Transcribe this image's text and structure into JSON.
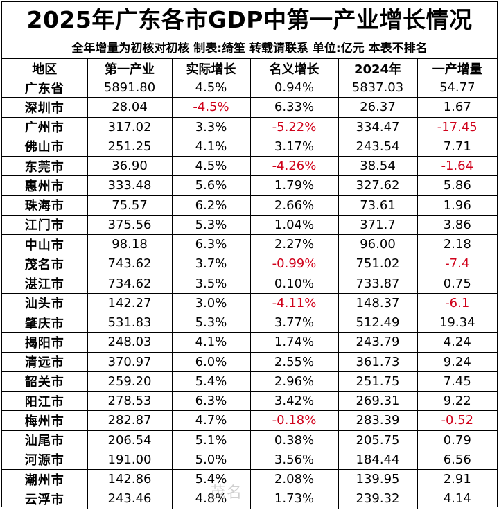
{
  "title": "2025年广东各市GDP中第一产业增长情况",
  "subtitle": "全年增量为初核对初核   制表:绮笙   转载请联系   单位:亿元   本表不排名",
  "table": {
    "headers": [
      "地区",
      "第一产业",
      "实际增长",
      "名义增长",
      "2024年",
      "一产增量"
    ],
    "rows": [
      {
        "region": "广东省",
        "primary": "5891.80",
        "real_growth": "4.5%",
        "nominal_growth": "0.94%",
        "y2024": "5837.03",
        "increment": "54.77"
      },
      {
        "region": "深圳市",
        "primary": "28.04",
        "real_growth": "-4.5%",
        "nominal_growth": "6.33%",
        "y2024": "26.37",
        "increment": "1.67"
      },
      {
        "region": "广州市",
        "primary": "317.02",
        "real_growth": "3.3%",
        "nominal_growth": "-5.22%",
        "y2024": "334.47",
        "increment": "-17.45"
      },
      {
        "region": "佛山市",
        "primary": "251.25",
        "real_growth": "4.1%",
        "nominal_growth": "3.17%",
        "y2024": "243.54",
        "increment": "7.71"
      },
      {
        "region": "东莞市",
        "primary": "36.90",
        "real_growth": "4.5%",
        "nominal_growth": "-4.26%",
        "y2024": "38.54",
        "increment": "-1.64"
      },
      {
        "region": "惠州市",
        "primary": "333.48",
        "real_growth": "5.6%",
        "nominal_growth": "1.79%",
        "y2024": "327.62",
        "increment": "5.86"
      },
      {
        "region": "珠海市",
        "primary": "75.57",
        "real_growth": "6.2%",
        "nominal_growth": "2.66%",
        "y2024": "73.61",
        "increment": "1.96"
      },
      {
        "region": "江门市",
        "primary": "375.56",
        "real_growth": "5.3%",
        "nominal_growth": "1.04%",
        "y2024": "371.7",
        "increment": "3.86"
      },
      {
        "region": "中山市",
        "primary": "98.18",
        "real_growth": "6.3%",
        "nominal_growth": "2.27%",
        "y2024": "96.00",
        "increment": "2.18"
      },
      {
        "region": "茂名市",
        "primary": "743.62",
        "real_growth": "3.7%",
        "nominal_growth": "-0.99%",
        "y2024": "751.02",
        "increment": "-7.4"
      },
      {
        "region": "湛江市",
        "primary": "734.62",
        "real_growth": "3.5%",
        "nominal_growth": "0.10%",
        "y2024": "733.87",
        "increment": "0.75"
      },
      {
        "region": "汕头市",
        "primary": "142.27",
        "real_growth": "3.0%",
        "nominal_growth": "-4.11%",
        "y2024": "148.37",
        "increment": "-6.1"
      },
      {
        "region": "肇庆市",
        "primary": "531.83",
        "real_growth": "5.3%",
        "nominal_growth": "3.77%",
        "y2024": "512.49",
        "increment": "19.34"
      },
      {
        "region": "揭阳市",
        "primary": "248.03",
        "real_growth": "4.1%",
        "nominal_growth": "1.74%",
        "y2024": "243.79",
        "increment": "4.24"
      },
      {
        "region": "清远市",
        "primary": "370.97",
        "real_growth": "6.0%",
        "nominal_growth": "2.55%",
        "y2024": "361.73",
        "increment": "9.24"
      },
      {
        "region": "韶关市",
        "primary": "259.20",
        "real_growth": "5.4%",
        "nominal_growth": "2.96%",
        "y2024": "251.75",
        "increment": "7.45"
      },
      {
        "region": "阳江市",
        "primary": "278.53",
        "real_growth": "6.3%",
        "nominal_growth": "3.42%",
        "y2024": "269.31",
        "increment": "9.22"
      },
      {
        "region": "梅州市",
        "primary": "282.87",
        "real_growth": "4.7%",
        "nominal_growth": "-0.18%",
        "y2024": "283.39",
        "increment": "-0.52"
      },
      {
        "region": "汕尾市",
        "primary": "206.54",
        "real_growth": "5.1%",
        "nominal_growth": "0.38%",
        "y2024": "205.75",
        "increment": "0.79"
      },
      {
        "region": "河源市",
        "primary": "191.00",
        "real_growth": "5.0%",
        "nominal_growth": "3.56%",
        "y2024": "184.44",
        "increment": "6.56"
      },
      {
        "region": "潮州市",
        "primary": "142.86",
        "real_growth": "5.4%",
        "nominal_growth": "2.08%",
        "y2024": "139.95",
        "increment": "2.91"
      },
      {
        "region": "云浮市",
        "primary": "243.46",
        "real_growth": "4.8%",
        "nominal_growth": "1.73%",
        "y2024": "239.32",
        "increment": "4.14"
      }
    ]
  },
  "colors": {
    "negative": "#d0021b",
    "text": "#000000",
    "background": "#ffffff"
  },
  "watermark": "茂名"
}
